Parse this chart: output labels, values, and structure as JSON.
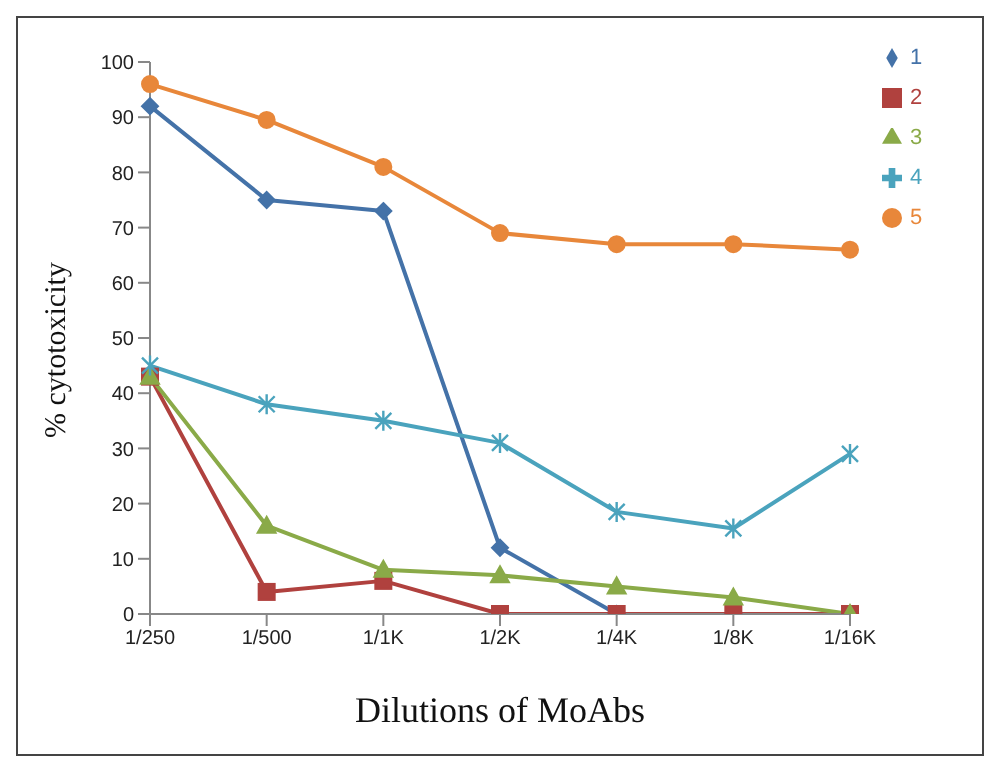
{
  "chart_data": {
    "type": "line",
    "xlabel": "Dilutions of MoAbs",
    "ylabel": "% cytotoxicity",
    "categories": [
      "1/250",
      "1/500",
      "1/1K",
      "1/2K",
      "1/4K",
      "1/8K",
      "1/16K"
    ],
    "series": [
      {
        "name": "1",
        "color": "#4472a8",
        "marker": "diamond",
        "values": [
          92,
          75,
          73,
          12,
          0,
          0,
          0
        ]
      },
      {
        "name": "2",
        "color": "#b0413e",
        "marker": "square",
        "values": [
          43,
          4,
          6,
          0,
          0,
          0,
          0
        ]
      },
      {
        "name": "3",
        "color": "#8aaa48",
        "marker": "triangle",
        "values": [
          43,
          16,
          8,
          7,
          5,
          3,
          0
        ]
      },
      {
        "name": "4",
        "color": "#4aa3bd",
        "marker": "cross",
        "values": [
          45,
          38,
          35,
          31,
          18.5,
          15.5,
          29
        ]
      },
      {
        "name": "5",
        "color": "#e8873a",
        "marker": "circle",
        "values": [
          96,
          89.5,
          81,
          69,
          67,
          67,
          66
        ]
      }
    ],
    "ylim": [
      0,
      100
    ],
    "yticks": [
      0,
      10,
      20,
      30,
      40,
      50,
      60,
      70,
      80,
      90,
      100
    ],
    "grid": false,
    "legend": "top right"
  }
}
